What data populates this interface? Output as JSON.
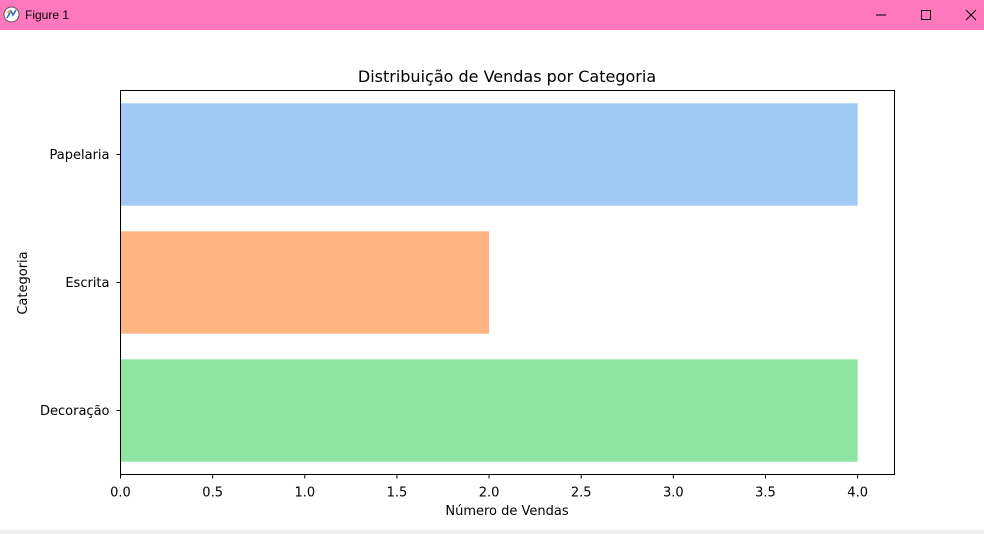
{
  "window": {
    "title": "Figure 1",
    "titlebar_color": "#ff78be",
    "icons": [
      "app-icon",
      "minimize-icon",
      "maximize-icon",
      "close-icon"
    ]
  },
  "chart_data": {
    "type": "bar",
    "orientation": "horizontal",
    "title": "Distribuição de Vendas por Categoria",
    "xlabel": "Número de Vendas",
    "ylabel": "Categoria",
    "categories": [
      "Papelaria",
      "Escrita",
      "Decoração"
    ],
    "values": [
      4,
      2,
      4
    ],
    "colors": [
      "#a1c9f4",
      "#ffb482",
      "#8de5a1"
    ],
    "xlim": [
      0,
      4.2
    ],
    "xticks": [
      "0.0",
      "0.5",
      "1.0",
      "1.5",
      "2.0",
      "2.5",
      "3.0",
      "3.5",
      "4.0"
    ],
    "grid": false,
    "legend": false
  }
}
